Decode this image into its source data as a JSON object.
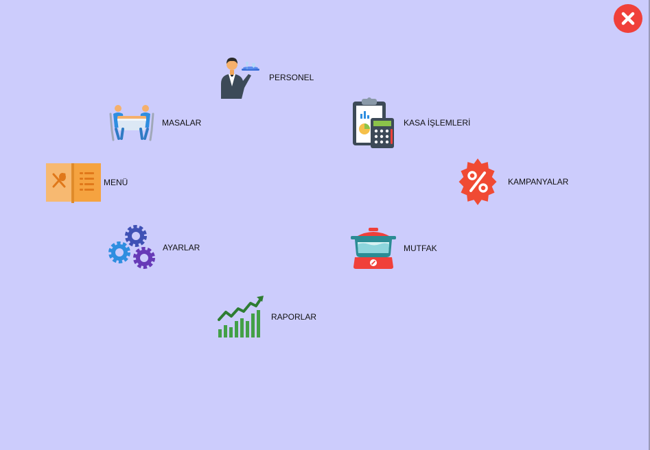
{
  "window": {
    "close_icon": "close-icon",
    "background_color": "#ccccfc",
    "close_color": "#f0403a"
  },
  "menu_items": [
    {
      "key": "personel",
      "label": "PERSONEL",
      "icon": "waiter-icon"
    },
    {
      "key": "masalar",
      "label": "MASALAR",
      "icon": "dining-table-icon"
    },
    {
      "key": "kasa",
      "label": "KASA İŞLEMLERİ",
      "icon": "cash-register-clipboard-icon"
    },
    {
      "key": "menu",
      "label": "MENÜ",
      "icon": "menu-book-icon"
    },
    {
      "key": "kampanyalar",
      "label": "KAMPANYALAR",
      "icon": "percent-badge-icon"
    },
    {
      "key": "ayarlar",
      "label": "AYARLAR",
      "icon": "gears-icon"
    },
    {
      "key": "mutfak",
      "label": "MUTFAK",
      "icon": "cooking-pot-icon"
    },
    {
      "key": "raporlar",
      "label": "RAPORLAR",
      "icon": "growth-chart-icon"
    }
  ]
}
